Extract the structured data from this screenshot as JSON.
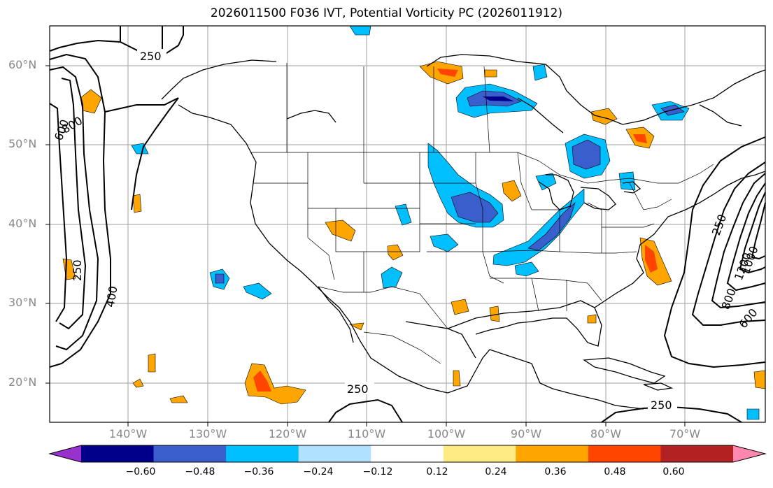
{
  "title": "2026011500 F036 IVT, Potential Vorticity PC (2026011912)",
  "lat_labels": [
    "60°N",
    "50°N",
    "40°N",
    "30°N",
    "20°N"
  ],
  "lon_labels": [
    "140°W",
    "130°W",
    "120°W",
    "110°W",
    "100°W",
    "90°W",
    "80°W",
    "70°W"
  ],
  "contour_labels": {
    "a": "250",
    "b": "600",
    "c": "800",
    "d": "250",
    "e": "400",
    "f": "250",
    "g": "250",
    "h": "250",
    "i": "1000",
    "j": "800",
    "k": "600",
    "l": "1200"
  },
  "colorbar": {
    "ticks": [
      "−0.60",
      "−0.48",
      "−0.36",
      "−0.24",
      "−0.12",
      "0.12",
      "0.24",
      "0.36",
      "0.48",
      "0.60"
    ],
    "colors": [
      "#9932cc",
      "#00008b",
      "#3a5fcd",
      "#00bfff",
      "#b0e2ff",
      "#ffffff",
      "#ffeb84",
      "#ffa500",
      "#ff4500",
      "#b22222",
      "#ff88b0"
    ]
  }
}
